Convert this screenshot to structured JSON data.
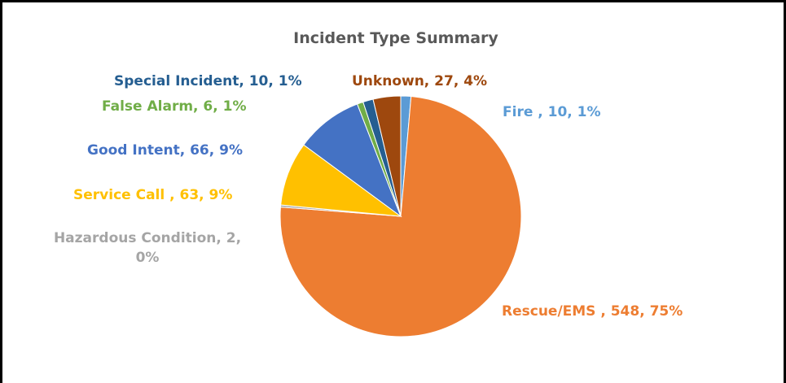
{
  "chart_data": {
    "type": "pie",
    "title": "Incident Type Summary",
    "categories": [
      "Fire ",
      "Rescue/EMS ",
      "Hazardous Condition",
      "Service Call ",
      "Good Intent",
      "False Alarm",
      "Special Incident",
      "Unknown"
    ],
    "values": [
      10,
      548,
      2,
      63,
      66,
      6,
      10,
      27
    ],
    "value_labels": [
      "Fire , 10, 1%",
      "Rescue/EMS , 548, 75%",
      "Hazardous Condition, 2, 0%",
      "Service Call , 63, 9%",
      "Good Intent, 66, 9%",
      "False Alarm, 6, 1%",
      "Special Incident, 10, 1%",
      "Unknown, 27, 4%"
    ],
    "colors": [
      "#5b9bd5",
      "#ed7d31",
      "#a5a5a5",
      "#ffc000",
      "#4472c4",
      "#70ad47",
      "#255e91",
      "#9e480e"
    ]
  }
}
